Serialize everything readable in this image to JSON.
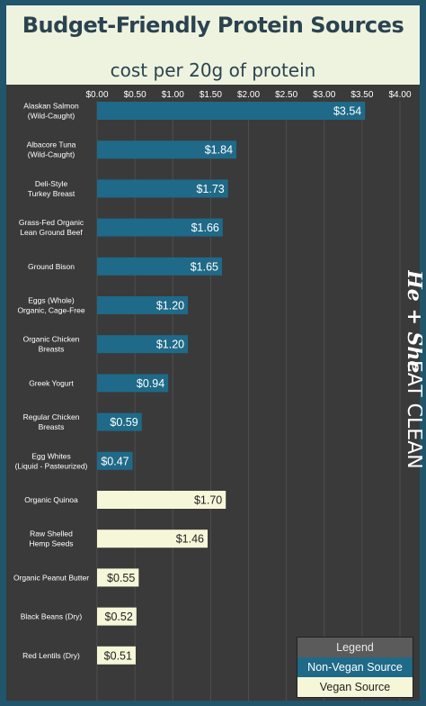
{
  "header": {
    "title": "Budget-Friendly Protein Sources",
    "subtitle": "cost per 20g of protein"
  },
  "watermark": {
    "brand": "He + She EAT CLEAN"
  },
  "colors": {
    "non_vegan": "#1f6a88",
    "vegan": "#f5f7d8",
    "plot_bg": "#3a3a3a",
    "frame": "#20556b",
    "header_bg": "#eef3df"
  },
  "legend": {
    "title": "Legend",
    "non_vegan_label": "Non-Vegan Source",
    "vegan_label": "Vegan Source"
  },
  "chart_data": {
    "type": "bar",
    "orientation": "horizontal",
    "title": "Budget-Friendly Protein Sources",
    "subtitle": "cost per 20g of protein",
    "xlim": [
      0,
      4
    ],
    "x_axis_position": "top",
    "grid": true,
    "legend_position": "bottom-right",
    "tick_labels": [
      "$0.00",
      "$0.50",
      "$1.00",
      "$1.50",
      "$2.00",
      "$2.50",
      "$3.00",
      "$3.50",
      "$4.00"
    ],
    "tick_values": [
      0,
      0.5,
      1,
      1.5,
      2,
      2.5,
      3,
      3.5,
      4
    ],
    "categories": [
      [
        "Alaskan Salmon",
        "(Wild-Caught)"
      ],
      [
        "Albacore Tuna",
        "(Wild-Caught)"
      ],
      [
        "Deli-Style",
        "Turkey Breast"
      ],
      [
        "Grass-Fed Organic",
        "Lean Ground Beef"
      ],
      [
        "Ground Bison"
      ],
      [
        "Eggs (Whole)",
        "Organic, Cage-Free"
      ],
      [
        "Organic Chicken",
        "Breasts"
      ],
      [
        "Greek Yogurt"
      ],
      [
        "Regular Chicken",
        "Breasts"
      ],
      [
        "Egg Whites",
        "(Liquid - Pasteurized)"
      ],
      [
        "Organic Quinoa"
      ],
      [
        "Raw Shelled",
        "Hemp Seeds"
      ],
      [
        "Organic Peanut Butter"
      ],
      [
        "Black Beans (Dry)"
      ],
      [
        "Red Lentils (Dry)"
      ]
    ],
    "values": [
      3.54,
      1.84,
      1.73,
      1.66,
      1.65,
      1.2,
      1.2,
      0.94,
      0.59,
      0.47,
      1.7,
      1.46,
      0.55,
      0.52,
      0.51
    ],
    "value_labels": [
      "$3.54",
      "$1.84",
      "$1.73",
      "$1.66",
      "$1.65",
      "$1.20",
      "$1.20",
      "$0.94",
      "$0.59",
      "$0.47",
      "$1.70",
      "$1.46",
      "$0.55",
      "$0.52",
      "$0.51"
    ],
    "groups": [
      "non-vegan",
      "non-vegan",
      "non-vegan",
      "non-vegan",
      "non-vegan",
      "non-vegan",
      "non-vegan",
      "non-vegan",
      "non-vegan",
      "non-vegan",
      "vegan",
      "vegan",
      "vegan",
      "vegan",
      "vegan"
    ]
  }
}
